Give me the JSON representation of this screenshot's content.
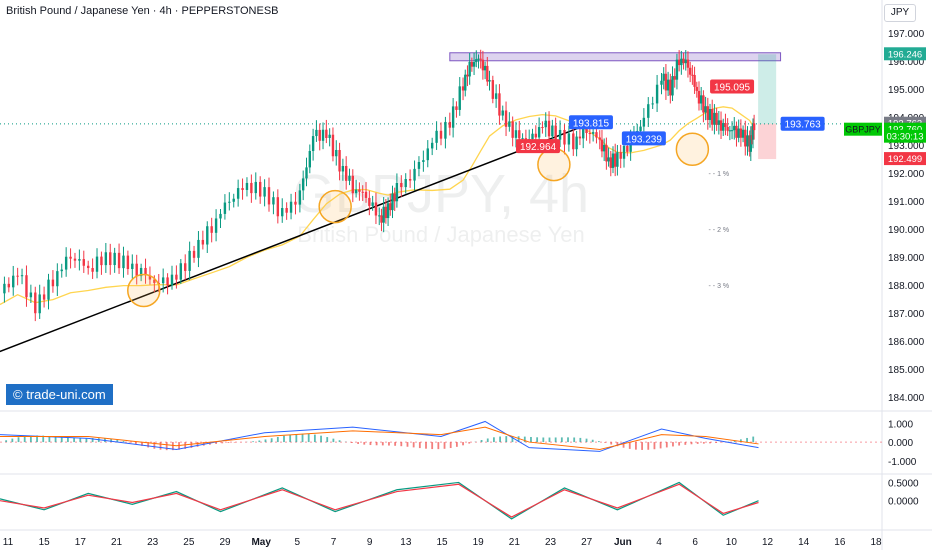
{
  "header": {
    "title": "British Pound / Japanese Yen · 4h · PEPPERSTONESB",
    "currency": "JPY"
  },
  "watermark": {
    "big_symbol": "GBPJPY, 4h",
    "big_name": "British Pound / Japanese Yen"
  },
  "brand": {
    "label": "© trade-uni.com"
  },
  "chart_data": {
    "type": "line",
    "symbol": "GBPJPY",
    "timeframe": "4h",
    "price_axis": {
      "ylim": [
        183.6,
        197.4
      ],
      "ticks": [
        "197.000",
        "196.000",
        "195.000",
        "194.000",
        "193.000",
        "192.000",
        "191.000",
        "190.000",
        "189.000",
        "188.000",
        "187.000",
        "186.000",
        "185.000",
        "184.000"
      ]
    },
    "x_axis": {
      "ticks": [
        "11",
        "15",
        "17",
        "21",
        "23",
        "25",
        "29",
        "May",
        "5",
        "7",
        "9",
        "13",
        "15",
        "19",
        "21",
        "23",
        "27",
        "Jun",
        "4",
        "6",
        "10",
        "12",
        "14",
        "16",
        "18"
      ]
    },
    "price_path": [
      [
        0,
        187.7
      ],
      [
        2,
        188.4
      ],
      [
        4,
        187.2
      ],
      [
        6,
        188.2
      ],
      [
        8,
        189.1
      ],
      [
        10,
        188.6
      ],
      [
        12,
        189.0
      ],
      [
        14,
        188.8
      ],
      [
        16,
        188.4
      ],
      [
        18,
        188.0
      ],
      [
        20,
        188.3
      ],
      [
        22,
        189.2
      ],
      [
        24,
        190.1
      ],
      [
        26,
        191.1
      ],
      [
        28,
        191.6
      ],
      [
        30,
        191.3
      ],
      [
        32,
        190.5
      ],
      [
        34,
        191.2
      ],
      [
        35.5,
        193.3
      ],
      [
        37,
        193.4
      ],
      [
        38.5,
        192.3
      ],
      [
        40,
        191.5
      ],
      [
        41.5,
        191.2
      ],
      [
        43,
        190.4
      ],
      [
        44,
        190.7
      ],
      [
        45,
        191.4
      ],
      [
        47,
        192.0
      ],
      [
        49,
        193.1
      ],
      [
        51,
        193.8
      ],
      [
        52.5,
        195.2
      ],
      [
        53.5,
        196.0
      ],
      [
        54.5,
        196.1
      ],
      [
        55.5,
        195.2
      ],
      [
        57,
        194.0
      ],
      [
        58.5,
        193.3
      ],
      [
        60,
        193.1
      ],
      [
        61.5,
        193.7
      ],
      [
        63,
        193.4
      ],
      [
        65,
        193.1
      ],
      [
        66.5,
        193.6
      ],
      [
        68,
        193.2
      ],
      [
        69,
        192.4
      ],
      [
        70,
        192.5
      ],
      [
        71.5,
        193.1
      ],
      [
        73,
        193.9
      ],
      [
        75,
        195.4
      ],
      [
        76,
        195.0
      ],
      [
        77,
        196.1
      ],
      [
        78,
        195.9
      ],
      [
        79,
        194.9
      ],
      [
        80,
        194.2
      ],
      [
        81,
        193.9
      ],
      [
        82,
        193.6
      ],
      [
        83,
        193.5
      ],
      [
        84,
        193.4
      ],
      [
        85,
        193.0
      ],
      [
        85.5,
        193.76
      ]
    ],
    "trendline": {
      "from": [
        -1,
        185.5
      ],
      "to": [
        65.5,
        193.6
      ]
    },
    "resistance_zone": {
      "from": [
        51,
        196.05
      ],
      "to": [
        88.5,
        196.3
      ]
    },
    "labels": [
      {
        "text": "193.815",
        "x": 67,
        "y": 193.815,
        "color": "#2962ff"
      },
      {
        "text": "192.964",
        "x": 61,
        "y": 192.964,
        "color": "#f23645"
      },
      {
        "text": "193.239",
        "x": 73,
        "y": 193.239,
        "color": "#2962ff"
      },
      {
        "text": "195.095",
        "x": 83,
        "y": 195.095,
        "color": "#f23645"
      },
      {
        "text": "193.763",
        "x": 91,
        "y": 193.763,
        "color": "#2962ff"
      }
    ],
    "fib_labels": [
      {
        "text": "1 %",
        "x": 81.5,
        "y": 192.0
      },
      {
        "text": "2 %",
        "x": 81.5,
        "y": 190.0
      },
      {
        "text": "3 %",
        "x": 81.5,
        "y": 188.0
      }
    ],
    "price_tags": [
      {
        "text": "196.246",
        "y": 196.246,
        "color": "#22ab94"
      },
      {
        "text": "193.763",
        "y": 193.763,
        "color": "#787b86"
      },
      {
        "text": "193.760",
        "y": 193.55,
        "color": "#00c805"
      },
      {
        "text": "03:30:13",
        "y": 193.3,
        "color": "#00c805"
      },
      {
        "text": "192.499",
        "y": 192.499,
        "color": "#f23645"
      }
    ],
    "symbol_tag": "GBPJPY",
    "macd": {
      "ylim": [
        -1.6,
        1.5
      ],
      "ticks": [
        "1.000",
        "0.000",
        "-1.000"
      ],
      "line": [
        [
          0,
          0.4
        ],
        [
          10,
          0.2
        ],
        [
          20,
          -0.4
        ],
        [
          30,
          0.5
        ],
        [
          40,
          0.8
        ],
        [
          50,
          0.3
        ],
        [
          55,
          1.1
        ],
        [
          60,
          -0.3
        ],
        [
          68,
          -0.5
        ],
        [
          75,
          0.7
        ],
        [
          80,
          0.2
        ],
        [
          86,
          -0.3
        ]
      ],
      "signal": [
        [
          0,
          0.3
        ],
        [
          10,
          0.3
        ],
        [
          20,
          -0.2
        ],
        [
          30,
          0.3
        ],
        [
          40,
          0.6
        ],
        [
          50,
          0.4
        ],
        [
          55,
          0.8
        ],
        [
          60,
          0.0
        ],
        [
          68,
          -0.4
        ],
        [
          75,
          0.4
        ],
        [
          80,
          0.3
        ],
        [
          86,
          -0.1
        ]
      ]
    },
    "stoch": {
      "ylim": [
        -0.75,
        0.65
      ],
      "ticks": [
        "0.5000",
        "0.0000"
      ],
      "k": [
        [
          0,
          0.05
        ],
        [
          5,
          -0.25
        ],
        [
          10,
          0.2
        ],
        [
          15,
          -0.1
        ],
        [
          20,
          0.25
        ],
        [
          25,
          -0.3
        ],
        [
          32,
          0.35
        ],
        [
          38,
          -0.3
        ],
        [
          45,
          0.3
        ],
        [
          52,
          0.5
        ],
        [
          58,
          -0.5
        ],
        [
          64,
          0.35
        ],
        [
          70,
          -0.25
        ],
        [
          77,
          0.5
        ],
        [
          82,
          -0.4
        ],
        [
          86,
          0.0
        ]
      ],
      "d": [
        [
          0,
          0.0
        ],
        [
          5,
          -0.2
        ],
        [
          10,
          0.15
        ],
        [
          15,
          -0.05
        ],
        [
          20,
          0.2
        ],
        [
          25,
          -0.25
        ],
        [
          32,
          0.3
        ],
        [
          38,
          -0.25
        ],
        [
          45,
          0.25
        ],
        [
          52,
          0.45
        ],
        [
          58,
          -0.45
        ],
        [
          64,
          0.3
        ],
        [
          70,
          -0.2
        ],
        [
          77,
          0.45
        ],
        [
          82,
          -0.35
        ],
        [
          86,
          -0.05
        ]
      ]
    }
  }
}
